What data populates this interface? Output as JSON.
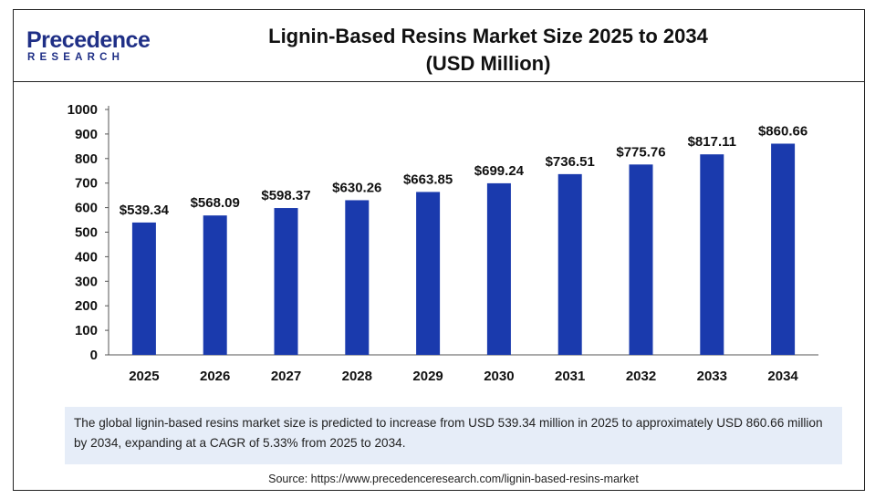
{
  "logo": {
    "line1": "Precedence",
    "line2": "RESEARCH"
  },
  "header": {
    "title_line1": "Lignin-Based Resins Market Size 2025 to 2034",
    "title_line2": "(USD Million)"
  },
  "chart_data": {
    "type": "bar",
    "categories": [
      "2025",
      "2026",
      "2027",
      "2028",
      "2029",
      "2030",
      "2031",
      "2032",
      "2033",
      "2034"
    ],
    "values": [
      539.34,
      568.09,
      598.37,
      630.26,
      663.85,
      699.24,
      736.51,
      775.76,
      817.11,
      860.66
    ],
    "data_labels": [
      "$539.34",
      "$568.09",
      "$598.37",
      "$630.26",
      "$663.85",
      "$699.24",
      "$736.51",
      "$775.76",
      "$817.11",
      "$860.66"
    ],
    "yticks": [
      0,
      100,
      200,
      300,
      400,
      500,
      600,
      700,
      800,
      900,
      1000
    ],
    "ylim": [
      0,
      1000
    ],
    "bar_color": "#1a3aad",
    "grid": false,
    "title": "Lignin-Based Resins Market Size 2025 to 2034 (USD Million)",
    "xlabel": "",
    "ylabel": ""
  },
  "summary": "The global lignin-based resins market size is predicted to increase from USD 539.34 million in 2025 to approximately USD 860.66 million by 2034, expanding at a CAGR of 5.33% from 2025 to 2034.",
  "source": "Source: https://www.precedenceresearch.com/lignin-based-resins-market"
}
